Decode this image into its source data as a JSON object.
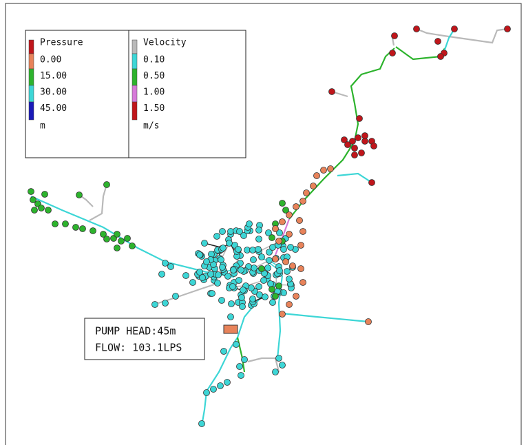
{
  "legend": {
    "pressure": {
      "title": "Pressure",
      "colors": [
        "#c0161b",
        "#e8835a",
        "#2db32d",
        "#3dd6d6",
        "#1a1ab8"
      ],
      "labels": [
        "0.00",
        "15.00",
        "30.00",
        "45.00"
      ],
      "unit": "m"
    },
    "velocity": {
      "title": "Velocity",
      "colors": [
        "#b9b9b9",
        "#3dd6d6",
        "#2db32d",
        "#d77ad9",
        "#c0161b"
      ],
      "labels": [
        "0.10",
        "0.50",
        "1.00",
        "1.50"
      ],
      "unit": "m/s"
    }
  },
  "pump": {
    "lines": [
      "PUMP HEAD:45m",
      "FLOW: 103.1LPS"
    ]
  }
}
